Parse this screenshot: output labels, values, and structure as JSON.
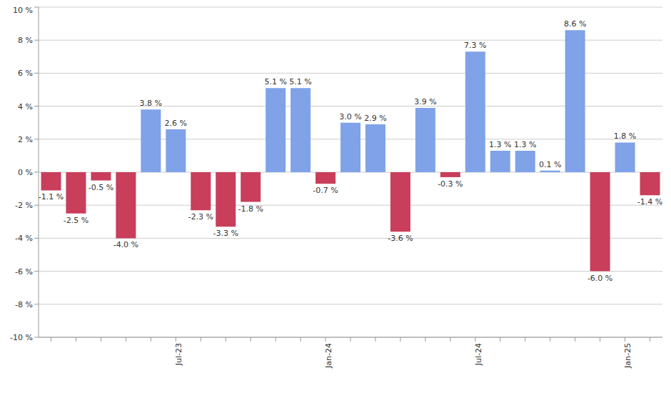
{
  "chart_data": {
    "type": "bar",
    "categories": [
      null,
      null,
      null,
      null,
      null,
      "Jul-23",
      null,
      null,
      null,
      null,
      null,
      "Jan-24",
      null,
      null,
      null,
      null,
      null,
      "Jul-24",
      null,
      null,
      null,
      null,
      null,
      "Jan-25",
      null
    ],
    "values": [
      -1.1,
      -2.5,
      -0.5,
      -4.0,
      3.8,
      2.6,
      -2.3,
      -3.3,
      -1.8,
      5.1,
      5.1,
      -0.7,
      3.0,
      2.9,
      -3.6,
      3.9,
      -0.3,
      7.3,
      1.3,
      1.3,
      0.1,
      8.6,
      -6.0,
      1.8,
      -1.4
    ],
    "value_labels": [
      "-1.1 %",
      "-2.5 %",
      "-0.5 %",
      "-4.0 %",
      "3.8 %",
      "2.6 %",
      "-2.3 %",
      "-3.3 %",
      "-1.8 %",
      "5.1 %",
      "5.1 %",
      "-0.7 %",
      "3.0 %",
      "2.9 %",
      "-3.6 %",
      "3.9 %",
      "-0.3 %",
      "7.3 %",
      "1.3 %",
      "1.3 %",
      "0.1 %",
      "8.6 %",
      "-6.0 %",
      "1.8 %",
      "-1.4 %"
    ],
    "colors": [
      "#c93e5b",
      "#c93e5b",
      "#c93e5b",
      "#c93e5b",
      "#7fa2e8",
      "#7fa2e8",
      "#c93e5b",
      "#c93e5b",
      "#c93e5b",
      "#7fa2e8",
      "#7fa2e8",
      "#c93e5b",
      "#7fa2e8",
      "#7fa2e8",
      "#c93e5b",
      "#7fa2e8",
      "#c93e5b",
      "#7fa2e8",
      "#7fa2e8",
      "#7fa2e8",
      "#7fa2e8",
      "#7fa2e8",
      "#c93e5b",
      "#7fa2e8",
      "#c93e5b"
    ],
    "ylim": [
      -10,
      10
    ],
    "yticks": [
      {
        "value": -10,
        "label": "-10 %"
      },
      {
        "value": -8,
        "label": "-8 %"
      },
      {
        "value": -6,
        "label": "-6 %"
      },
      {
        "value": -4,
        "label": "-4 %"
      },
      {
        "value": -2,
        "label": "-2 %"
      },
      {
        "value": 0,
        "label": "0 %"
      },
      {
        "value": 2,
        "label": "2 %"
      },
      {
        "value": 4,
        "label": "4 %"
      },
      {
        "value": 6,
        "label": "6 %"
      },
      {
        "value": 8,
        "label": "8 %"
      },
      {
        "value": 10,
        "label": "10 %"
      }
    ],
    "grid": true,
    "data_labels": true
  }
}
